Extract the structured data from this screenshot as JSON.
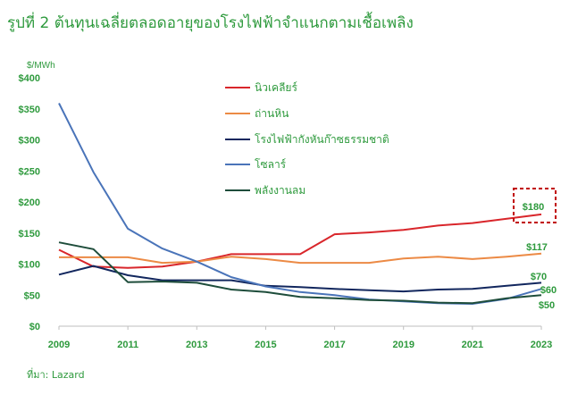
{
  "title": "รูปที่ 2 ต้นทุนเฉลี่ยตลอดอายุของโรงไฟฟ้าจำแนกตามเชื้อเพลิง",
  "source": "ที่มา: Lazard",
  "colors": {
    "text": "#2e9a3d",
    "highlight": "#c00000"
  },
  "chart_data": {
    "type": "line",
    "ylabel": "$/MWh",
    "ylim": [
      0,
      400
    ],
    "yticks": [
      "$0",
      "$50",
      "$100",
      "$150",
      "$200",
      "$250",
      "$300",
      "$350",
      "$400"
    ],
    "xlim": [
      2009,
      2023
    ],
    "xticks": [
      "2009",
      "2011",
      "2013",
      "2015",
      "2017",
      "2019",
      "2021",
      "2023"
    ],
    "x": [
      2009,
      2010,
      2011,
      2012,
      2013,
      2014,
      2015,
      2016,
      2017,
      2018,
      2019,
      2020,
      2021,
      2022,
      2023
    ],
    "legend_position": "top-center",
    "series": [
      {
        "name": "นิวเคลียร์",
        "color": "#d9262b",
        "values": [
          123,
          96,
          94,
          96,
          104,
          116,
          116,
          116,
          148,
          151,
          155,
          162,
          166,
          173,
          180
        ]
      },
      {
        "name": "ถ่านหิน",
        "color": "#ec8a45",
        "values": [
          111,
          111,
          111,
          102,
          104,
          112,
          108,
          102,
          102,
          102,
          109,
          112,
          108,
          112,
          117
        ]
      },
      {
        "name": "โรงไฟฟ้ากังหันก๊าซธรรมชาติ",
        "color": "#12275e",
        "values": [
          83,
          97,
          82,
          74,
          74,
          74,
          65,
          63,
          60,
          58,
          56,
          59,
          60,
          65,
          70
        ]
      },
      {
        "name": "โซลาร์",
        "color": "#4a74b9",
        "values": [
          359,
          248,
          157,
          125,
          104,
          79,
          64,
          55,
          50,
          43,
          40,
          37,
          36,
          44,
          60
        ]
      },
      {
        "name": "พลังงานลม",
        "color": "#1e4d3b",
        "values": [
          135,
          124,
          71,
          72,
          70,
          59,
          55,
          47,
          45,
          42,
          41,
          38,
          37,
          45,
          50
        ]
      }
    ],
    "annotations": [
      {
        "text": "$180",
        "series": "นิวเคลียร์",
        "boxed": true
      },
      {
        "text": "$117",
        "series": "ถ่านหิน"
      },
      {
        "text": "$70",
        "series": "โรงไฟฟ้ากังหันก๊าซธรรมชาติ"
      },
      {
        "text": "$60",
        "series": "โซลาร์"
      },
      {
        "text": "$50",
        "series": "พลังงานลม"
      }
    ]
  }
}
